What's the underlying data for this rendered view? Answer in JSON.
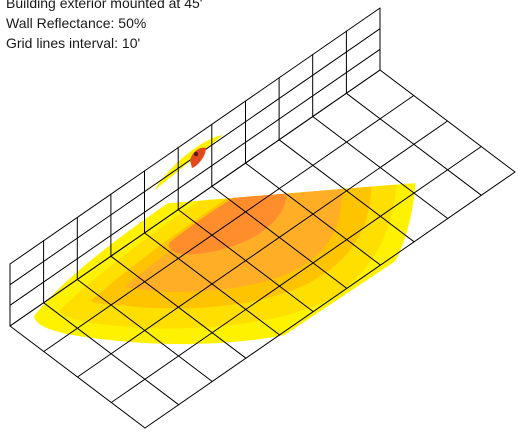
{
  "caption": {
    "line1": "Building exterior mounted at 45'",
    "line2": "Wall Reflectance: 50%",
    "line3": "Grid lines interval: 10'"
  },
  "colors": {
    "grid": "#000000",
    "light_level_low": "#fff200",
    "light_level_mid": "#ffd000",
    "light_level_high": "#ffa51f",
    "light_level_peak": "#ff8a2a",
    "fixture": "#c0392b"
  }
}
